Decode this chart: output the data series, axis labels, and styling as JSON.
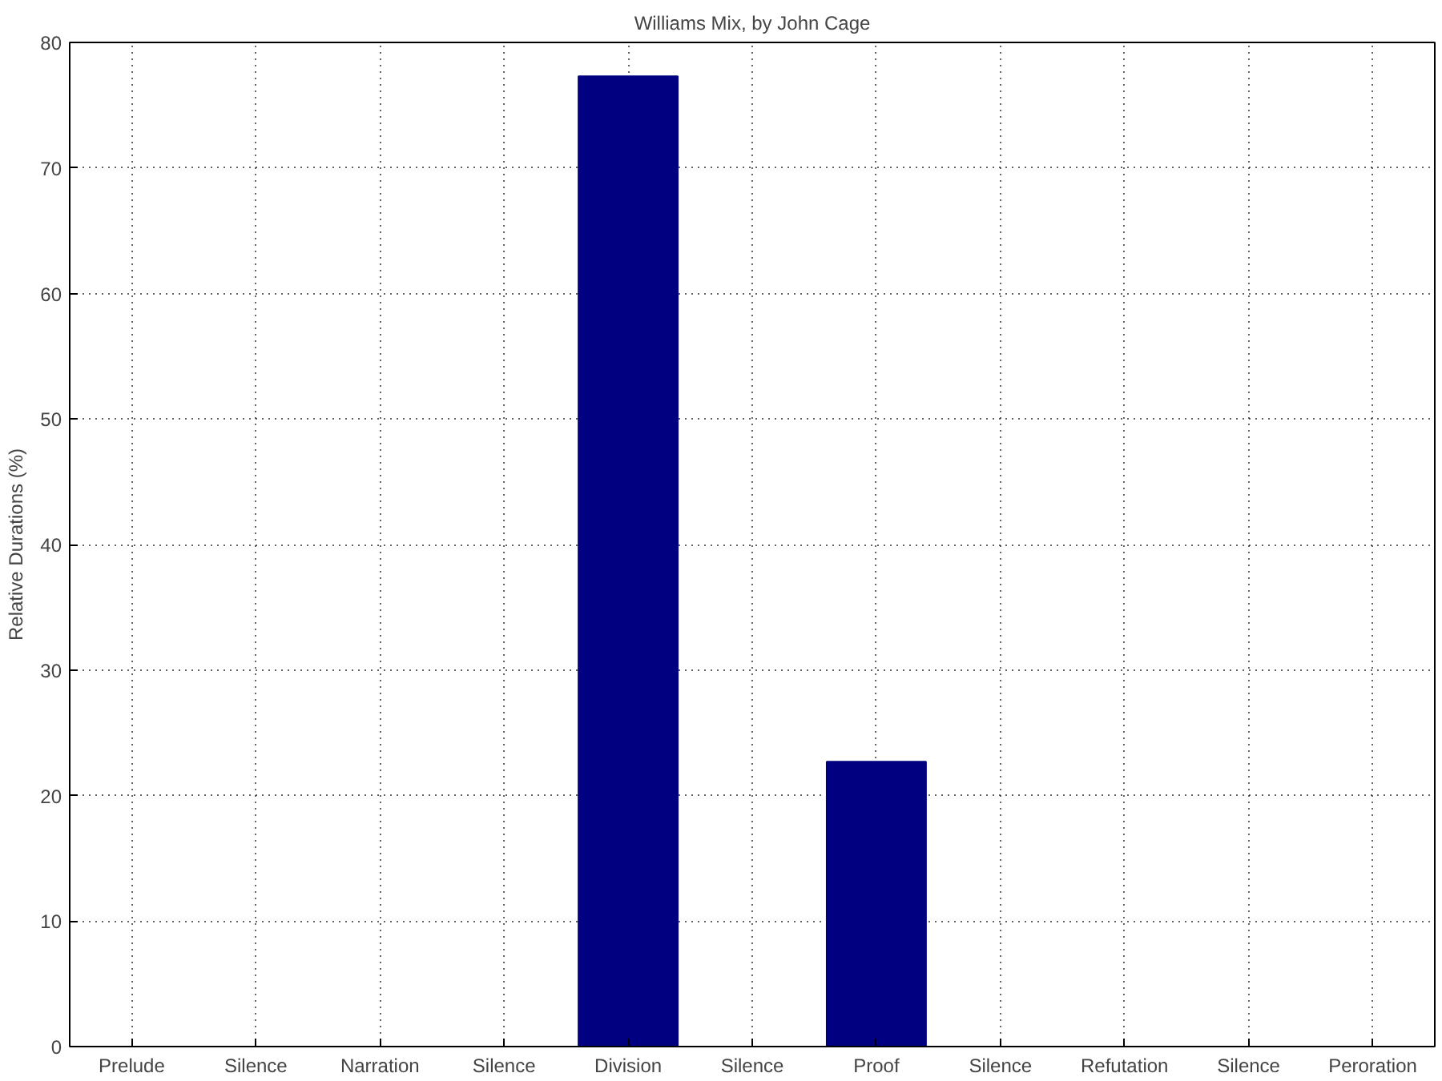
{
  "chart_data": {
    "type": "bar",
    "title": "Williams Mix, by John Cage",
    "ylabel": "Relative Durations (%)",
    "categories": [
      "Prelude",
      "Silence",
      "Narration",
      "Silence",
      "Division",
      "Silence",
      "Proof",
      "Silence",
      "Refutation",
      "Silence",
      "Peroration"
    ],
    "values": [
      0,
      0,
      0,
      0,
      77.3,
      0,
      22.7,
      0,
      0,
      0,
      0
    ],
    "color": "#000080",
    "ylim": [
      0,
      80
    ],
    "yticks": [
      0,
      10,
      20,
      30,
      40,
      50,
      60,
      70,
      80
    ],
    "grid": true
  }
}
